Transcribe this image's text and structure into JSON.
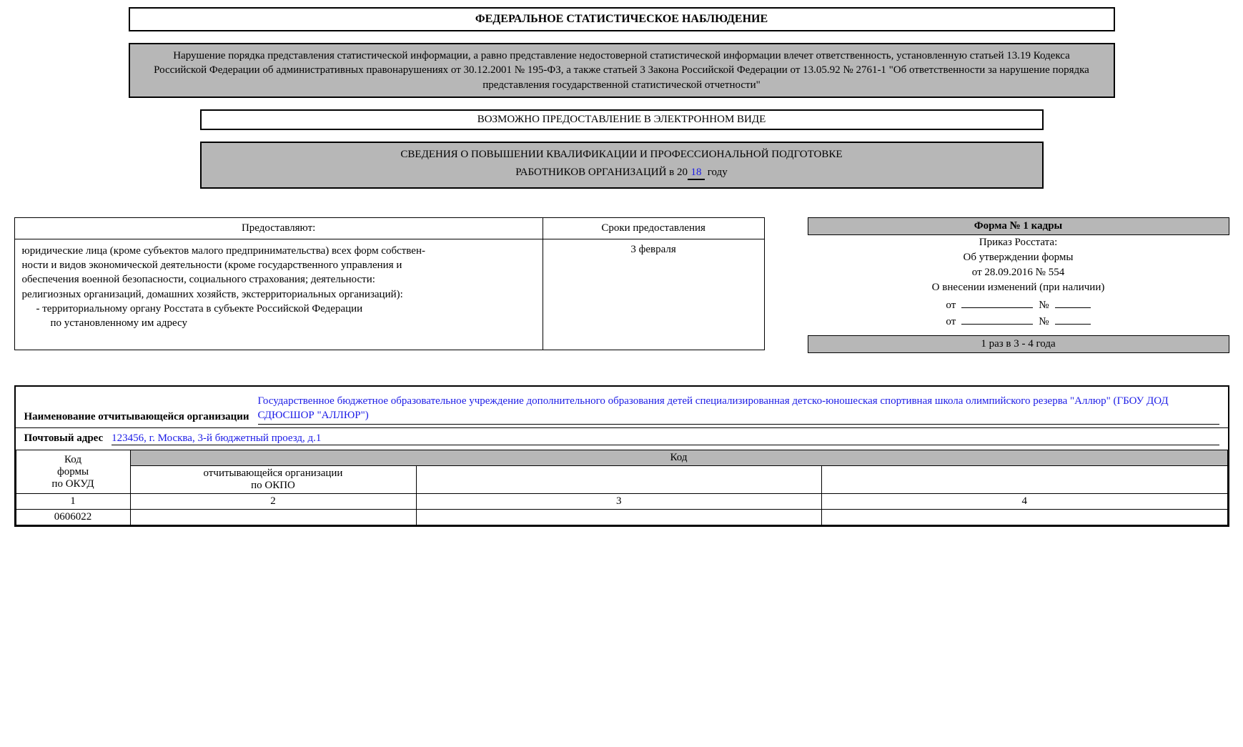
{
  "colors": {
    "header_bg": "#b7b7b7",
    "fill_text": "#1a1ae6",
    "border": "#000000",
    "page_bg": "#ffffff"
  },
  "typography": {
    "font_family": "Times New Roman",
    "base_size_pt": 11,
    "header_weight": "bold"
  },
  "header_title": "ФЕДЕРАЛЬНОЕ СТАТИСТИЧЕСКОЕ НАБЛЮДЕНИЕ",
  "warning_text": "Нарушение порядка представления статистической информации, а равно представление недостоверной статистической информации влечет ответственность, установленную статьей 13.19 Кодекса Российской Федерации об административных правонарушениях от 30.12.2001 № 195-ФЗ, а также статьей 3 Закона Российской Федерации от 13.05.92 № 2761-1 \"Об ответственности за нарушение порядка представления государственной статистической отчетности\"",
  "electronic_text": "ВОЗМОЖНО ПРЕДОСТАВЛЕНИЕ В ЭЛЕКТРОННОМ ВИДЕ",
  "info_title": "СВЕДЕНИЯ О ПОВЫШЕНИИ КВАЛИФИКАЦИИ И ПРОФЕССИОНАЛЬНОЙ ПОДГОТОВКЕ",
  "info_subtitle_prefix": "РАБОТНИКОВ ОРГАНИЗАЦИЙ в 20",
  "info_year_fill": "18",
  "info_subtitle_suffix": " году",
  "provide_table": {
    "header_provide": "Предоставляют:",
    "header_deadline": "Сроки предоставления",
    "deadline_value": "3 февраля",
    "body_line1": "юридические лица (кроме субъектов малого предпринимательства) всех форм собствен-",
    "body_line2": "ности и видов экономической деятельности (кроме государственного управления и",
    "body_line3": "обеспечения военной безопасности, социального страхования; деятельности:",
    "body_line4": "религиозных организаций, домашних хозяйств, экстерриториальных организаций):",
    "body_line5": "- территориальному органу Росстата в субъекте Российской Федерации",
    "body_line6": "по установленному им адресу"
  },
  "form_meta": {
    "form_header": "Форма № 1 кадры",
    "line_prikaz": "Приказ Росстата:",
    "line_approve": "Об утверждении формы",
    "line_approve_date": "от 28.09.2016 № 554",
    "line_changes": "О внесении изменений (при наличии)",
    "label_ot": "от",
    "label_num": "№",
    "frequency": "1 раз в 3 - 4 года"
  },
  "org": {
    "name_label": "Наименование отчитывающейся организации",
    "name_value": "Государственное бюджетное образовательное учреждение дополнительного образования детей специализированная детско-юношеская спортивная школа олимпийского резерва \"Аллюр\" (ГБОУ ДОД СДЮСШОР \"АЛЛЮР\")",
    "addr_label": "Почтовый адрес",
    "addr_value": "123456, г. Москва, 3-й бюджетный проезд, д.1"
  },
  "code_table": {
    "okud_label_l1": "Код",
    "okud_label_l2": "формы",
    "okud_label_l3": "по ОКУД",
    "kod_header": "Код",
    "okpo_label_l1": "отчитывающейся организации",
    "okpo_label_l2": "по ОКПО",
    "col_nums": [
      "1",
      "2",
      "3",
      "4"
    ],
    "okud_value": "0606022",
    "okpo_value": "",
    "col3_value": "",
    "col4_value": ""
  }
}
